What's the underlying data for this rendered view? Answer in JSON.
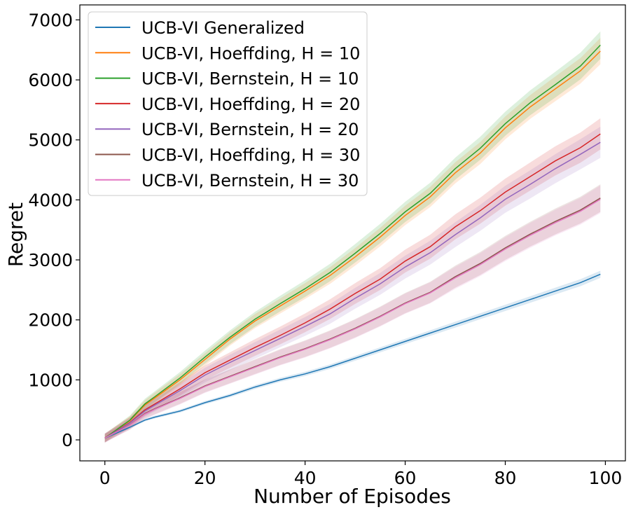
{
  "chart_data": {
    "type": "line",
    "title": "",
    "xlabel": "Number of Episodes",
    "ylabel": "Regret",
    "xlim": [
      -5,
      104
    ],
    "ylim": [
      -350,
      7250
    ],
    "x_ticks": [
      0,
      20,
      40,
      60,
      80,
      100
    ],
    "y_ticks": [
      0,
      1000,
      2000,
      3000,
      4000,
      5000,
      6000,
      7000
    ],
    "grid": false,
    "legend_position": "upper-left",
    "shaded_bands": true,
    "series": [
      {
        "name": "UCB-VI Generalized",
        "color": "#1f77b4",
        "x": [
          0,
          5,
          8,
          10,
          15,
          20,
          25,
          30,
          35,
          40,
          45,
          50,
          55,
          60,
          65,
          70,
          75,
          80,
          85,
          90,
          95,
          99
        ],
        "y": [
          30,
          210,
          330,
          380,
          480,
          620,
          740,
          880,
          1000,
          1100,
          1220,
          1360,
          1500,
          1640,
          1780,
          1920,
          2060,
          2200,
          2340,
          2480,
          2620,
          2760
        ],
        "band": 60
      },
      {
        "name": "UCB-VI, Hoeffding, H = 10",
        "color": "#ff7f0e",
        "x": [
          0,
          5,
          8,
          10,
          15,
          20,
          25,
          30,
          35,
          40,
          45,
          50,
          55,
          60,
          65,
          70,
          75,
          80,
          85,
          90,
          95,
          99
        ],
        "y": [
          30,
          320,
          580,
          700,
          1000,
          1340,
          1680,
          1980,
          2230,
          2480,
          2740,
          3050,
          3380,
          3740,
          4050,
          4450,
          4780,
          5200,
          5550,
          5850,
          6150,
          6480
        ],
        "band": 220
      },
      {
        "name": "UCB-VI, Bernstein, H = 10",
        "color": "#2ca02c",
        "x": [
          0,
          5,
          8,
          10,
          15,
          20,
          25,
          30,
          35,
          40,
          45,
          50,
          55,
          60,
          65,
          70,
          75,
          80,
          85,
          90,
          95,
          99
        ],
        "y": [
          30,
          330,
          600,
          720,
          1030,
          1380,
          1710,
          2010,
          2270,
          2520,
          2790,
          3110,
          3440,
          3800,
          4110,
          4520,
          4860,
          5270,
          5620,
          5920,
          6230,
          6580
        ],
        "band": 230
      },
      {
        "name": "UCB-VI, Hoeffding, H = 20",
        "color": "#d62728",
        "x": [
          0,
          5,
          8,
          10,
          15,
          20,
          25,
          30,
          35,
          40,
          45,
          50,
          55,
          60,
          65,
          70,
          75,
          80,
          85,
          90,
          95,
          99
        ],
        "y": [
          30,
          290,
          500,
          600,
          850,
          1120,
          1330,
          1540,
          1740,
          1950,
          2180,
          2440,
          2680,
          2980,
          3220,
          3550,
          3820,
          4130,
          4390,
          4650,
          4870,
          5100
        ],
        "band": 260
      },
      {
        "name": "UCB-VI, Bernstein, H = 20",
        "color": "#9467bd",
        "x": [
          0,
          5,
          8,
          10,
          15,
          20,
          25,
          30,
          35,
          40,
          45,
          50,
          55,
          60,
          65,
          70,
          75,
          80,
          85,
          90,
          95,
          99
        ],
        "y": [
          30,
          280,
          480,
          580,
          820,
          1080,
          1290,
          1490,
          1690,
          1890,
          2100,
          2360,
          2600,
          2880,
          3120,
          3420,
          3700,
          4010,
          4260,
          4520,
          4760,
          4960
        ],
        "band": 260
      },
      {
        "name": "UCB-VI, Hoeffding, H = 30",
        "color": "#8c564b",
        "x": [
          0,
          5,
          8,
          10,
          15,
          20,
          25,
          30,
          35,
          40,
          45,
          50,
          55,
          60,
          65,
          70,
          75,
          80,
          85,
          90,
          95,
          99
        ],
        "y": [
          30,
          250,
          440,
          520,
          700,
          900,
          1060,
          1220,
          1380,
          1520,
          1680,
          1860,
          2060,
          2280,
          2460,
          2720,
          2940,
          3200,
          3430,
          3640,
          3830,
          4030
        ],
        "band": 230
      },
      {
        "name": "UCB-VI, Bernstein, H = 30",
        "color": "#e377c2",
        "x": [
          0,
          5,
          8,
          10,
          15,
          20,
          25,
          30,
          35,
          40,
          45,
          50,
          55,
          60,
          65,
          70,
          75,
          80,
          85,
          90,
          95,
          99
        ],
        "y": [
          30,
          245,
          430,
          510,
          690,
          890,
          1050,
          1210,
          1370,
          1510,
          1670,
          1850,
          2050,
          2270,
          2450,
          2700,
          2920,
          3180,
          3410,
          3620,
          3810,
          4010
        ],
        "band": 230
      }
    ]
  }
}
